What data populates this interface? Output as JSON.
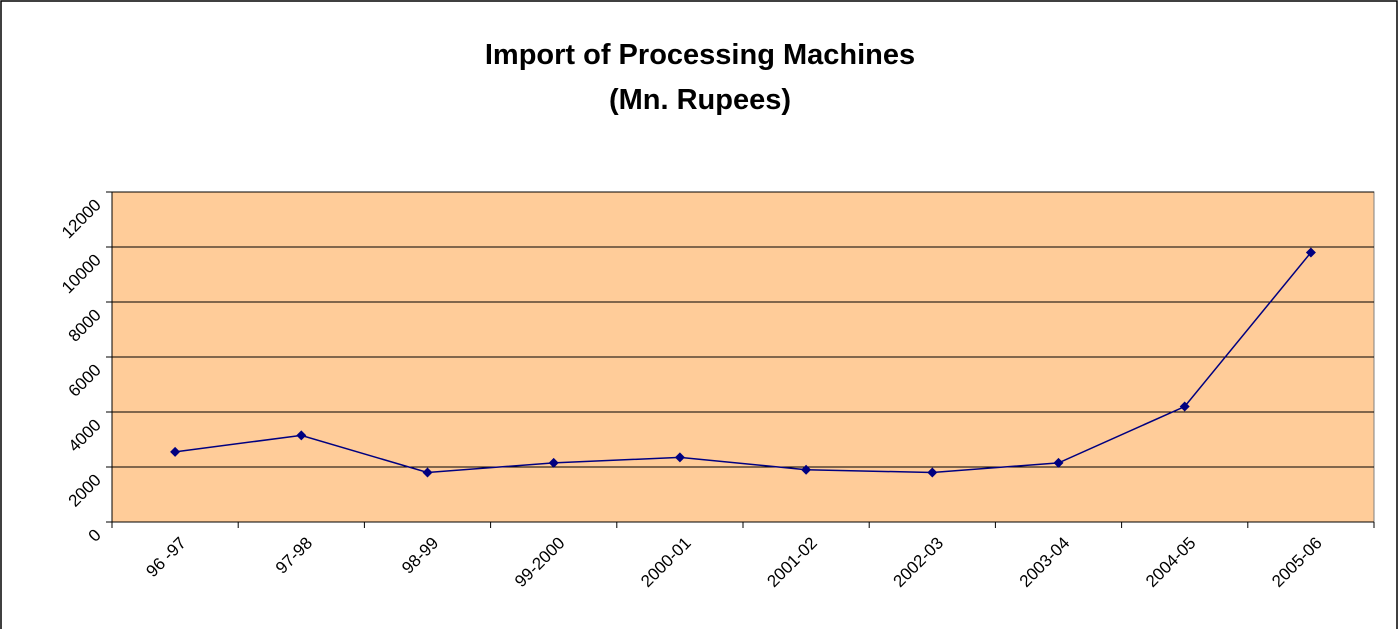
{
  "chart_data": {
    "type": "line",
    "title": "Import of Processing Machines",
    "subtitle": "(Mn. Rupees)",
    "categories": [
      "96 -97",
      "97-98",
      "98-99",
      "99-2000",
      "2000-01",
      "2001-02",
      "2002-03",
      "2003-04",
      "2004-05",
      "2005-06"
    ],
    "values": [
      2550,
      3150,
      1800,
      2150,
      2350,
      1900,
      1800,
      2150,
      4200,
      9800
    ],
    "color": "#000080",
    "background": "#ffcc99",
    "ylim": [
      0,
      12000
    ],
    "yticks": [
      0,
      2000,
      4000,
      6000,
      8000,
      10000,
      12000
    ],
    "grid": true
  }
}
